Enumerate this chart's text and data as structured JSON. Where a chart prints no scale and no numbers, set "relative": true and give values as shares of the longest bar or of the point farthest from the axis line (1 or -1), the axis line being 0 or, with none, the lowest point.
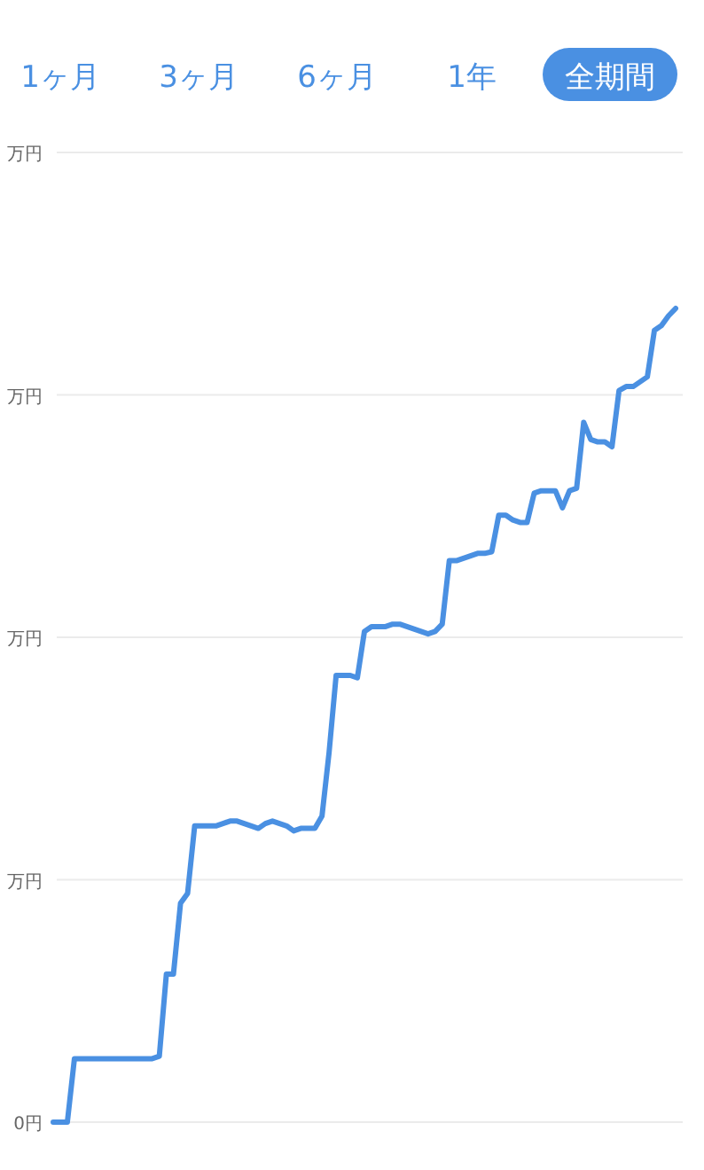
{
  "chart_data": {
    "type": "line",
    "relative": true,
    "annotations": [
      "1ヶ月",
      "3ヶ月",
      "6ヶ月",
      "1年",
      "全期間",
      "万円",
      "万円",
      "万円",
      "万円",
      "0円"
    ],
    "categories": [
      null,
      null,
      null,
      null,
      null,
      null,
      null,
      null,
      null,
      null,
      null,
      null,
      null,
      null,
      null,
      null,
      null,
      null,
      null,
      null,
      null,
      null,
      null,
      null,
      null,
      null,
      null,
      null,
      null,
      null,
      null,
      null,
      null,
      null,
      null,
      null,
      null,
      null,
      null,
      null,
      null,
      null,
      null,
      null,
      null,
      null,
      null,
      null,
      null,
      null,
      null,
      null,
      null,
      null,
      null,
      null,
      null,
      null,
      null,
      null,
      null,
      null,
      null,
      null,
      null,
      null,
      null,
      null,
      null,
      null,
      null,
      null,
      null,
      null,
      null,
      null,
      null,
      null,
      null,
      null,
      null,
      null,
      null,
      null,
      null,
      null,
      null,
      null,
      null
    ],
    "series": [
      {
        "color": "#4a90e2",
        "values": [
          0,
          0,
          0,
          0.078,
          0.078,
          0.078,
          0.078,
          0.078,
          0.078,
          0.078,
          0.078,
          0.078,
          0.078,
          0.078,
          0.078,
          0.081,
          0.182,
          0.182,
          0.269,
          0.281,
          0.364,
          0.364,
          0.364,
          0.364,
          0.367,
          0.37,
          0.37,
          0.367,
          0.364,
          0.361,
          0.367,
          0.37,
          0.367,
          0.364,
          0.358,
          0.361,
          0.361,
          0.361,
          0.376,
          0.454,
          0.549,
          0.549,
          0.549,
          0.546,
          0.603,
          0.609,
          0.609,
          0.609,
          0.612,
          0.612,
          0.609,
          0.606,
          0.603,
          0.6,
          0.603,
          0.612,
          0.69,
          0.69,
          0.693,
          0.696,
          0.699,
          0.699,
          0.701,
          0.746,
          0.746,
          0.74,
          0.737,
          0.737,
          0.773,
          0.776,
          0.776,
          0.776,
          0.755,
          0.776,
          0.779,
          0.86,
          0.839,
          0.836,
          0.836,
          0.83,
          0.899,
          0.904,
          0.904,
          0.91,
          0.916,
          0.973,
          0.979,
          0.991,
          1
        ]
      }
    ],
    "grid": "y",
    "marker": "none",
    "line_style": "solid"
  }
}
